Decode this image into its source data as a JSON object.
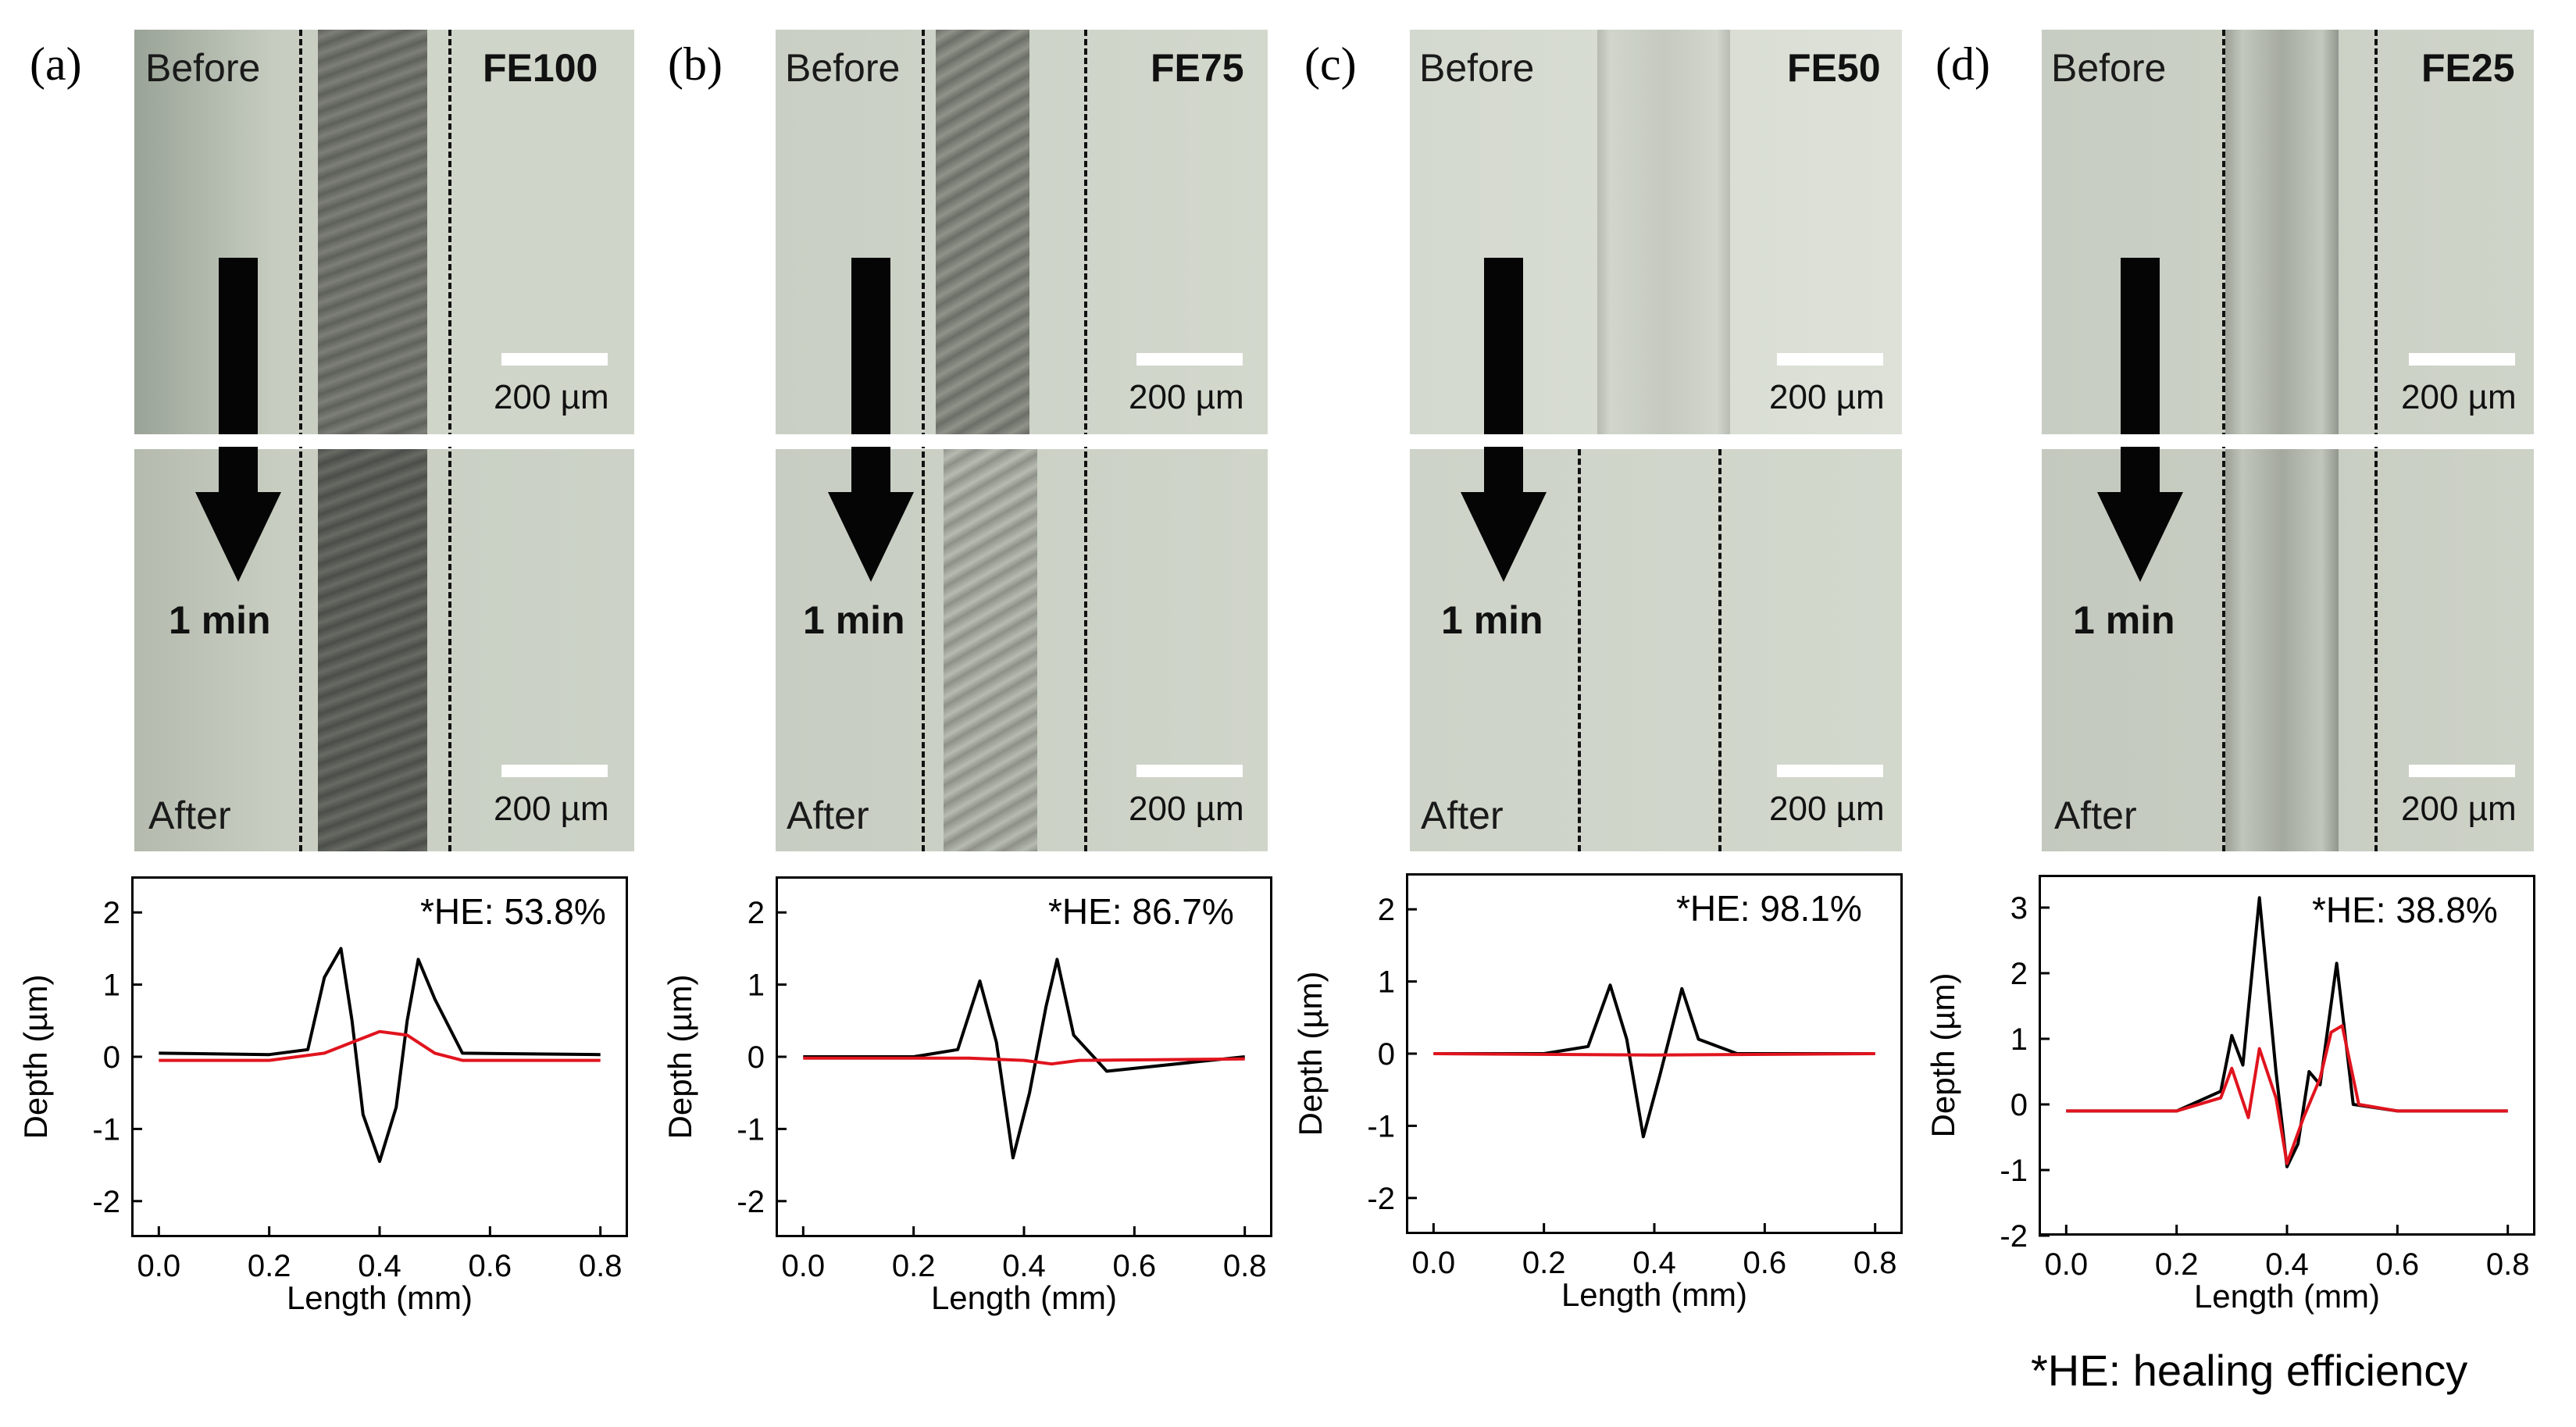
{
  "panels": [
    {
      "letter": "(a)",
      "sample": "FE100",
      "before": "Before",
      "after": "After",
      "time": "1 min",
      "scale": "200 µm",
      "he": "*HE: 53.8%",
      "yticks": [
        "2",
        "1",
        "0",
        "-1",
        "-2"
      ]
    },
    {
      "letter": "(b)",
      "sample": "FE75",
      "before": "Before",
      "after": "After",
      "time": "1 min",
      "scale": "200 µm",
      "he": "*HE: 86.7%",
      "yticks": [
        "2",
        "1",
        "0",
        "-1",
        "-2"
      ]
    },
    {
      "letter": "(c)",
      "sample": "FE50",
      "before": "Before",
      "after": "After",
      "time": "1 min",
      "scale": "200 µm",
      "he": "*HE: 98.1%",
      "yticks": [
        "2",
        "1",
        "0",
        "-1",
        "-2"
      ]
    },
    {
      "letter": "(d)",
      "sample": "FE25",
      "before": "Before",
      "after": "After",
      "time": "1 min",
      "scale": "200 µm",
      "he": "*HE: 38.8%",
      "yticks": [
        "3",
        "2",
        "1",
        "0",
        "-1",
        "-2"
      ]
    }
  ],
  "axis": {
    "xlabel": "Length (mm)",
    "ylabel": "Depth (µm)",
    "xticks": [
      "0.0",
      "0.2",
      "0.4",
      "0.6",
      "0.8"
    ]
  },
  "footnote": "*HE: healing efficiency",
  "colors": {
    "before_curve": "#000000",
    "after_curve": "#e0141e"
  },
  "chart_data": [
    {
      "type": "line",
      "xlabel": "Length (mm)",
      "ylabel": "Depth (µm)",
      "xlim": [
        -0.05,
        0.85
      ],
      "ylim": [
        -2.5,
        2.5
      ],
      "annotation": "*HE: 53.8%",
      "series": [
        {
          "color": "#000000",
          "x": [
            0.0,
            0.2,
            0.27,
            0.3,
            0.33,
            0.35,
            0.37,
            0.4,
            0.43,
            0.45,
            0.47,
            0.5,
            0.55,
            0.8
          ],
          "y": [
            0.05,
            0.03,
            0.1,
            1.1,
            1.5,
            0.5,
            -0.8,
            -1.45,
            -0.7,
            0.5,
            1.35,
            0.8,
            0.05,
            0.03
          ]
        },
        {
          "color": "#e0141e",
          "x": [
            0.0,
            0.2,
            0.3,
            0.35,
            0.4,
            0.45,
            0.5,
            0.55,
            0.8
          ],
          "y": [
            -0.05,
            -0.05,
            0.05,
            0.2,
            0.35,
            0.3,
            0.05,
            -0.05,
            -0.05
          ]
        }
      ]
    },
    {
      "type": "line",
      "xlabel": "Length (mm)",
      "ylabel": "Depth (µm)",
      "xlim": [
        -0.05,
        0.85
      ],
      "ylim": [
        -2.5,
        2.5
      ],
      "annotation": "*HE: 86.7%",
      "series": [
        {
          "color": "#000000",
          "x": [
            0.0,
            0.2,
            0.28,
            0.32,
            0.35,
            0.38,
            0.41,
            0.44,
            0.46,
            0.49,
            0.55,
            0.8
          ],
          "y": [
            0.0,
            0.0,
            0.1,
            1.05,
            0.2,
            -1.4,
            -0.5,
            0.7,
            1.35,
            0.3,
            -0.2,
            0.0
          ]
        },
        {
          "color": "#e0141e",
          "x": [
            0.0,
            0.3,
            0.4,
            0.45,
            0.5,
            0.8
          ],
          "y": [
            -0.02,
            -0.02,
            -0.05,
            -0.1,
            -0.05,
            -0.03
          ]
        }
      ]
    },
    {
      "type": "line",
      "xlabel": "Length (mm)",
      "ylabel": "Depth (µm)",
      "xlim": [
        -0.05,
        0.85
      ],
      "ylim": [
        -2.5,
        2.5
      ],
      "annotation": "*HE: 98.1%",
      "series": [
        {
          "color": "#000000",
          "x": [
            0.0,
            0.2,
            0.28,
            0.32,
            0.35,
            0.38,
            0.41,
            0.45,
            0.48,
            0.55,
            0.8
          ],
          "y": [
            0.0,
            0.0,
            0.1,
            0.95,
            0.2,
            -1.15,
            -0.3,
            0.9,
            0.2,
            0.0,
            0.0
          ]
        },
        {
          "color": "#e0141e",
          "x": [
            0.0,
            0.4,
            0.8
          ],
          "y": [
            0.0,
            -0.02,
            0.0
          ]
        }
      ]
    },
    {
      "type": "line",
      "xlabel": "Length (mm)",
      "ylabel": "Depth (µm)",
      "xlim": [
        -0.05,
        0.85
      ],
      "ylim": [
        -2,
        3.5
      ],
      "annotation": "*HE: 38.8%",
      "series": [
        {
          "color": "#000000",
          "x": [
            0.0,
            0.2,
            0.28,
            0.3,
            0.32,
            0.35,
            0.38,
            0.4,
            0.42,
            0.44,
            0.46,
            0.49,
            0.52,
            0.6,
            0.8
          ],
          "y": [
            -0.1,
            -0.1,
            0.2,
            1.05,
            0.6,
            3.15,
            0.5,
            -0.95,
            -0.6,
            0.5,
            0.3,
            2.15,
            0.0,
            -0.1,
            -0.1
          ]
        },
        {
          "color": "#e0141e",
          "x": [
            0.0,
            0.2,
            0.28,
            0.3,
            0.33,
            0.35,
            0.38,
            0.4,
            0.43,
            0.46,
            0.48,
            0.5,
            0.53,
            0.6,
            0.8
          ],
          "y": [
            -0.1,
            -0.1,
            0.1,
            0.55,
            -0.2,
            0.85,
            0.1,
            -0.9,
            -0.2,
            0.4,
            1.1,
            1.2,
            0.0,
            -0.1,
            -0.1
          ]
        }
      ]
    }
  ]
}
